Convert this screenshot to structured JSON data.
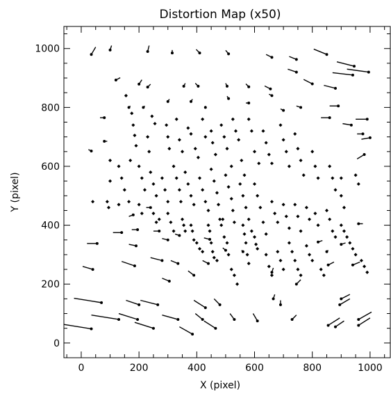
{
  "chart_data": {
    "type": "scatter",
    "subtype": "vector-field",
    "title": "Distortion Map (x50)",
    "xlabel": "X (pixel)",
    "ylabel": "Y (pixel)",
    "xlim": [
      -60,
      1070
    ],
    "ylim": [
      -50,
      1075
    ],
    "xticks": [
      0,
      200,
      400,
      600,
      800,
      1000
    ],
    "yticks": [
      0,
      200,
      400,
      600,
      800,
      1000
    ],
    "grid": false,
    "legend": "none",
    "colors": {
      "axis": "#000000",
      "vector": "#000000",
      "point": "#000000"
    },
    "vectors": [
      {
        "x": 35,
        "y": 980,
        "dx": 15,
        "dy": 25
      },
      {
        "x": 100,
        "y": 995,
        "dx": 5,
        "dy": 15
      },
      {
        "x": 230,
        "y": 990,
        "dx": 5,
        "dy": 20
      },
      {
        "x": 315,
        "y": 985,
        "dx": 0,
        "dy": 10
      },
      {
        "x": 410,
        "y": 985,
        "dx": -12,
        "dy": 12
      },
      {
        "x": 510,
        "y": 982,
        "dx": -10,
        "dy": 12
      },
      {
        "x": 660,
        "y": 970,
        "dx": -20,
        "dy": 10
      },
      {
        "x": 745,
        "y": 963,
        "dx": -25,
        "dy": 10
      },
      {
        "x": 850,
        "y": 980,
        "dx": -45,
        "dy": 18
      },
      {
        "x": 945,
        "y": 940,
        "dx": -60,
        "dy": 15
      },
      {
        "x": 995,
        "y": 920,
        "dx": -75,
        "dy": 10
      },
      {
        "x": 120,
        "y": 893,
        "dx": 15,
        "dy": 8
      },
      {
        "x": 200,
        "y": 879,
        "dx": 10,
        "dy": 15
      },
      {
        "x": 230,
        "y": 869,
        "dx": 10,
        "dy": 10
      },
      {
        "x": 355,
        "y": 872,
        "dx": 5,
        "dy": 10
      },
      {
        "x": 405,
        "y": 872,
        "dx": -10,
        "dy": 10
      },
      {
        "x": 505,
        "y": 872,
        "dx": -5,
        "dy": 10
      },
      {
        "x": 580,
        "y": 870,
        "dx": -10,
        "dy": 10
      },
      {
        "x": 655,
        "y": 863,
        "dx": -20,
        "dy": 10
      },
      {
        "x": 745,
        "y": 920,
        "dx": -30,
        "dy": 10
      },
      {
        "x": 800,
        "y": 880,
        "dx": -30,
        "dy": 15
      },
      {
        "x": 880,
        "y": 865,
        "dx": -40,
        "dy": 10
      },
      {
        "x": 940,
        "y": 910,
        "dx": -70,
        "dy": 8
      },
      {
        "x": 80,
        "y": 765,
        "dx": -15,
        "dy": 0
      },
      {
        "x": 165,
        "y": 800,
        "dx": 5,
        "dy": 5
      },
      {
        "x": 215,
        "y": 800,
        "dx": 5,
        "dy": 5
      },
      {
        "x": 300,
        "y": 820,
        "dx": 5,
        "dy": 8
      },
      {
        "x": 380,
        "y": 820,
        "dx": 5,
        "dy": 8
      },
      {
        "x": 430,
        "y": 800,
        "dx": 0,
        "dy": 5
      },
      {
        "x": 510,
        "y": 830,
        "dx": -5,
        "dy": 8
      },
      {
        "x": 580,
        "y": 815,
        "dx": -10,
        "dy": 0
      },
      {
        "x": 660,
        "y": 840,
        "dx": -10,
        "dy": 5
      },
      {
        "x": 700,
        "y": 790,
        "dx": -10,
        "dy": 5
      },
      {
        "x": 760,
        "y": 800,
        "dx": -15,
        "dy": 5
      },
      {
        "x": 890,
        "y": 805,
        "dx": -30,
        "dy": 0
      },
      {
        "x": 990,
        "y": 760,
        "dx": -40,
        "dy": 0
      },
      {
        "x": 860,
        "y": 765,
        "dx": -30,
        "dy": 0
      },
      {
        "x": 935,
        "y": 740,
        "dx": -30,
        "dy": 5
      },
      {
        "x": 975,
        "y": 710,
        "dx": -20,
        "dy": 0
      },
      {
        "x": 1000,
        "y": 697,
        "dx": -30,
        "dy": -5
      },
      {
        "x": 35,
        "y": 652,
        "dx": -10,
        "dy": 5
      },
      {
        "x": 80,
        "y": 685,
        "dx": 10,
        "dy": 0
      },
      {
        "x": 980,
        "y": 640,
        "dx": -25,
        "dy": -15
      },
      {
        "x": 140,
        "y": 375,
        "dx": -30,
        "dy": 0
      },
      {
        "x": 195,
        "y": 385,
        "dx": -20,
        "dy": 0
      },
      {
        "x": 190,
        "y": 330,
        "dx": -25,
        "dy": 5
      },
      {
        "x": 55,
        "y": 338,
        "dx": -35,
        "dy": 0
      },
      {
        "x": 180,
        "y": 435,
        "dx": -15,
        "dy": -5
      },
      {
        "x": 240,
        "y": 460,
        "dx": -15,
        "dy": 0
      },
      {
        "x": 270,
        "y": 380,
        "dx": -20,
        "dy": 0
      },
      {
        "x": 300,
        "y": 350,
        "dx": -20,
        "dy": 5
      },
      {
        "x": 340,
        "y": 365,
        "dx": -15,
        "dy": 5
      },
      {
        "x": 445,
        "y": 352,
        "dx": -20,
        "dy": 5
      },
      {
        "x": 500,
        "y": 315,
        "dx": -10,
        "dy": 8
      },
      {
        "x": 560,
        "y": 310,
        "dx": -5,
        "dy": 5
      },
      {
        "x": 820,
        "y": 343,
        "dx": 15,
        "dy": 5
      },
      {
        "x": 900,
        "y": 335,
        "dx": 15,
        "dy": 5
      },
      {
        "x": 960,
        "y": 405,
        "dx": 15,
        "dy": 0
      },
      {
        "x": 940,
        "y": 265,
        "dx": 25,
        "dy": 10
      },
      {
        "x": 40,
        "y": 250,
        "dx": -35,
        "dy": 10
      },
      {
        "x": 185,
        "y": 262,
        "dx": -45,
        "dy": 15
      },
      {
        "x": 280,
        "y": 280,
        "dx": -40,
        "dy": 10
      },
      {
        "x": 335,
        "y": 270,
        "dx": -25,
        "dy": 10
      },
      {
        "x": 390,
        "y": 230,
        "dx": -20,
        "dy": 15
      },
      {
        "x": 440,
        "y": 270,
        "dx": -20,
        "dy": 10
      },
      {
        "x": 305,
        "y": 210,
        "dx": -25,
        "dy": 10
      },
      {
        "x": 70,
        "y": 137,
        "dx": -95,
        "dy": 15
      },
      {
        "x": 130,
        "y": 80,
        "dx": -95,
        "dy": 15
      },
      {
        "x": 35,
        "y": 48,
        "dx": -95,
        "dy": 15
      },
      {
        "x": 195,
        "y": 80,
        "dx": -65,
        "dy": 20
      },
      {
        "x": 250,
        "y": 50,
        "dx": -65,
        "dy": 20
      },
      {
        "x": 265,
        "y": 130,
        "dx": -60,
        "dy": 15
      },
      {
        "x": 200,
        "y": 130,
        "dx": -45,
        "dy": 15
      },
      {
        "x": 335,
        "y": 80,
        "dx": -55,
        "dy": 15
      },
      {
        "x": 385,
        "y": 30,
        "dx": -45,
        "dy": 25
      },
      {
        "x": 430,
        "y": 120,
        "dx": -40,
        "dy": 25
      },
      {
        "x": 465,
        "y": 50,
        "dx": -40,
        "dy": 25
      },
      {
        "x": 420,
        "y": 80,
        "dx": -25,
        "dy": 20
      },
      {
        "x": 480,
        "y": 130,
        "dx": -20,
        "dy": 20
      },
      {
        "x": 530,
        "y": 80,
        "dx": -15,
        "dy": 20
      },
      {
        "x": 610,
        "y": 75,
        "dx": -15,
        "dy": 25
      },
      {
        "x": 690,
        "y": 130,
        "dx": 0,
        "dy": 15
      },
      {
        "x": 665,
        "y": 150,
        "dx": 5,
        "dy": 15
      },
      {
        "x": 730,
        "y": 80,
        "dx": 15,
        "dy": 15
      },
      {
        "x": 855,
        "y": 60,
        "dx": 40,
        "dy": 25
      },
      {
        "x": 880,
        "y": 55,
        "dx": 30,
        "dy": 20
      },
      {
        "x": 960,
        "y": 80,
        "dx": 45,
        "dy": 25
      },
      {
        "x": 960,
        "y": 60,
        "dx": 40,
        "dy": 25
      },
      {
        "x": 895,
        "y": 130,
        "dx": 35,
        "dy": 20
      },
      {
        "x": 900,
        "y": 150,
        "dx": 30,
        "dy": 15
      },
      {
        "x": 745,
        "y": 200,
        "dx": 15,
        "dy": 15
      },
      {
        "x": 660,
        "y": 240,
        "dx": 5,
        "dy": 15
      },
      {
        "x": 855,
        "y": 265,
        "dx": 20,
        "dy": 10
      },
      {
        "x": 850,
        "y": 310,
        "dx": 5,
        "dy": 5
      }
    ],
    "points": [
      [
        155,
        840
      ],
      [
        175,
        780
      ],
      [
        180,
        740
      ],
      [
        185,
        705
      ],
      [
        190,
        670
      ],
      [
        230,
        700
      ],
      [
        235,
        650
      ],
      [
        245,
        770
      ],
      [
        255,
        745
      ],
      [
        295,
        740
      ],
      [
        300,
        700
      ],
      [
        305,
        660
      ],
      [
        330,
        760
      ],
      [
        340,
        690
      ],
      [
        350,
        650
      ],
      [
        370,
        730
      ],
      [
        380,
        710
      ],
      [
        395,
        660
      ],
      [
        405,
        630
      ],
      [
        420,
        760
      ],
      [
        430,
        700
      ],
      [
        450,
        720
      ],
      [
        455,
        680
      ],
      [
        465,
        640
      ],
      [
        485,
        740
      ],
      [
        495,
        700
      ],
      [
        505,
        660
      ],
      [
        520,
        600
      ],
      [
        525,
        760
      ],
      [
        535,
        720
      ],
      [
        545,
        690
      ],
      [
        555,
        620
      ],
      [
        565,
        570
      ],
      [
        580,
        760
      ],
      [
        590,
        720
      ],
      [
        600,
        650
      ],
      [
        615,
        610
      ],
      [
        630,
        720
      ],
      [
        640,
        680
      ],
      [
        650,
        640
      ],
      [
        660,
        610
      ],
      [
        690,
        740
      ],
      [
        700,
        690
      ],
      [
        710,
        650
      ],
      [
        720,
        600
      ],
      [
        740,
        710
      ],
      [
        750,
        660
      ],
      [
        760,
        620
      ],
      [
        770,
        570
      ],
      [
        800,
        650
      ],
      [
        810,
        600
      ],
      [
        820,
        560
      ],
      [
        860,
        600
      ],
      [
        870,
        560
      ],
      [
        880,
        520
      ],
      [
        900,
        560
      ],
      [
        900,
        500
      ],
      [
        910,
        460
      ],
      [
        950,
        570
      ],
      [
        960,
        540
      ],
      [
        100,
        620
      ],
      [
        100,
        550
      ],
      [
        130,
        600
      ],
      [
        140,
        560
      ],
      [
        150,
        520
      ],
      [
        165,
        480
      ],
      [
        170,
        620
      ],
      [
        200,
        600
      ],
      [
        210,
        560
      ],
      [
        220,
        520
      ],
      [
        240,
        580
      ],
      [
        250,
        540
      ],
      [
        260,
        500
      ],
      [
        280,
        560
      ],
      [
        290,
        520
      ],
      [
        300,
        480
      ],
      [
        320,
        600
      ],
      [
        330,
        560
      ],
      [
        340,
        520
      ],
      [
        345,
        480
      ],
      [
        360,
        580
      ],
      [
        370,
        540
      ],
      [
        380,
        500
      ],
      [
        390,
        470
      ],
      [
        410,
        560
      ],
      [
        420,
        520
      ],
      [
        430,
        480
      ],
      [
        440,
        450
      ],
      [
        450,
        590
      ],
      [
        460,
        550
      ],
      [
        470,
        510
      ],
      [
        475,
        470
      ],
      [
        490,
        420
      ],
      [
        500,
        570
      ],
      [
        510,
        530
      ],
      [
        520,
        490
      ],
      [
        525,
        450
      ],
      [
        530,
        410
      ],
      [
        550,
        540
      ],
      [
        560,
        500
      ],
      [
        570,
        460
      ],
      [
        580,
        420
      ],
      [
        590,
        380
      ],
      [
        600,
        540
      ],
      [
        610,
        500
      ],
      [
        620,
        460
      ],
      [
        630,
        410
      ],
      [
        640,
        370
      ],
      [
        660,
        480
      ],
      [
        670,
        440
      ],
      [
        680,
        410
      ],
      [
        700,
        470
      ],
      [
        710,
        430
      ],
      [
        720,
        390
      ],
      [
        740,
        470
      ],
      [
        750,
        430
      ],
      [
        760,
        380
      ],
      [
        780,
        460
      ],
      [
        790,
        420
      ],
      [
        810,
        440
      ],
      [
        820,
        400
      ],
      [
        850,
        450
      ],
      [
        860,
        420
      ],
      [
        40,
        480
      ],
      [
        90,
        480
      ],
      [
        95,
        460
      ],
      [
        130,
        470
      ],
      [
        200,
        470
      ],
      [
        210,
        440
      ],
      [
        250,
        440
      ],
      [
        260,
        410
      ],
      [
        270,
        420
      ],
      [
        300,
        440
      ],
      [
        310,
        410
      ],
      [
        320,
        380
      ],
      [
        350,
        420
      ],
      [
        355,
        400
      ],
      [
        360,
        380
      ],
      [
        380,
        400
      ],
      [
        385,
        380
      ],
      [
        390,
        350
      ],
      [
        400,
        340
      ],
      [
        410,
        320
      ],
      [
        420,
        310
      ],
      [
        440,
        400
      ],
      [
        445,
        380
      ],
      [
        450,
        340
      ],
      [
        455,
        310
      ],
      [
        460,
        290
      ],
      [
        470,
        280
      ],
      [
        480,
        420
      ],
      [
        485,
        400
      ],
      [
        495,
        360
      ],
      [
        505,
        340
      ],
      [
        510,
        300
      ],
      [
        520,
        250
      ],
      [
        530,
        230
      ],
      [
        540,
        200
      ],
      [
        560,
        400
      ],
      [
        565,
        370
      ],
      [
        570,
        340
      ],
      [
        575,
        300
      ],
      [
        580,
        270
      ],
      [
        600,
        360
      ],
      [
        605,
        335
      ],
      [
        610,
        320
      ],
      [
        640,
        300
      ],
      [
        650,
        260
      ],
      [
        660,
        230
      ],
      [
        680,
        310
      ],
      [
        690,
        280
      ],
      [
        700,
        250
      ],
      [
        720,
        340
      ],
      [
        730,
        310
      ],
      [
        740,
        280
      ],
      [
        750,
        250
      ],
      [
        760,
        230
      ],
      [
        780,
        330
      ],
      [
        790,
        300
      ],
      [
        800,
        280
      ],
      [
        830,
        250
      ],
      [
        840,
        230
      ],
      [
        870,
        380
      ],
      [
        880,
        360
      ],
      [
        900,
        400
      ],
      [
        910,
        380
      ],
      [
        920,
        360
      ],
      [
        930,
        340
      ],
      [
        940,
        320
      ],
      [
        950,
        300
      ],
      [
        970,
        280
      ],
      [
        980,
        260
      ],
      [
        990,
        240
      ]
    ]
  }
}
